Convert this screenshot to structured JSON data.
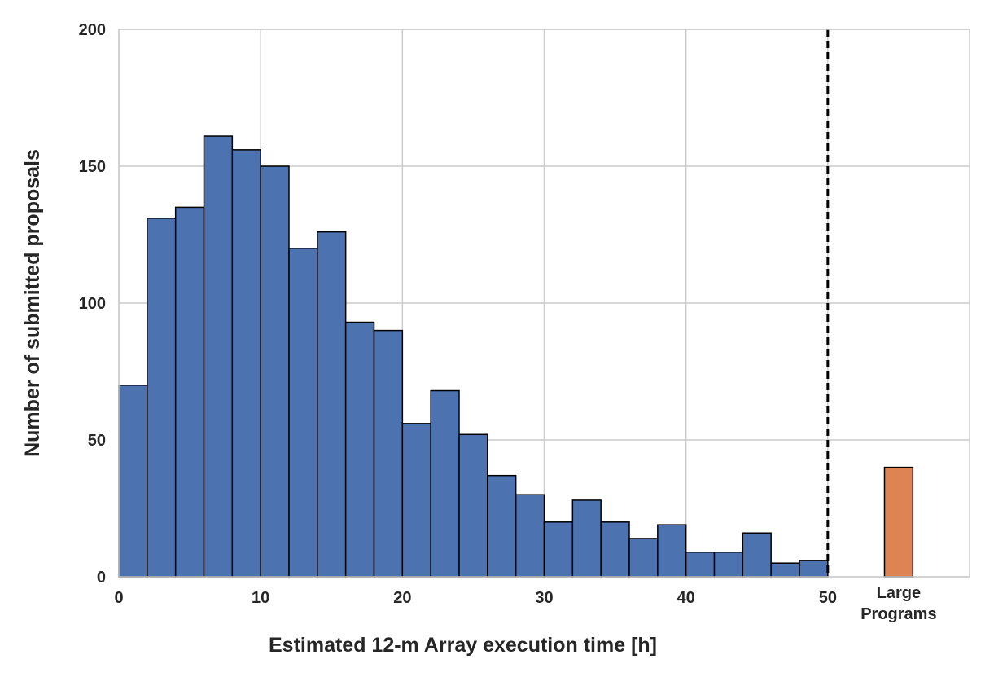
{
  "chart_data": {
    "type": "bar",
    "xlabel": "Estimated 12-m Array execution time  [h]",
    "ylabel": "Number of submitted proposals",
    "xlim": [
      0,
      60
    ],
    "ylim": [
      0,
      200
    ],
    "x_ticks": [
      0,
      10,
      20,
      30,
      40,
      50
    ],
    "y_ticks": [
      0,
      50,
      100,
      150,
      200
    ],
    "grid": true,
    "bin_width": 2,
    "histogram": {
      "bin_starts": [
        0,
        2,
        4,
        6,
        8,
        10,
        12,
        14,
        16,
        18,
        20,
        22,
        24,
        26,
        28,
        30,
        32,
        34,
        36,
        38,
        40,
        42,
        44,
        46,
        48
      ],
      "values": [
        70,
        131,
        135,
        161,
        156,
        150,
        120,
        126,
        93,
        90,
        56,
        68,
        52,
        37,
        30,
        20,
        28,
        20,
        14,
        19,
        9,
        9,
        16,
        5,
        6
      ],
      "color": "#4c72b0"
    },
    "large_programs": {
      "label": [
        "Large",
        "Programs"
      ],
      "x_start": 54,
      "x_end": 56,
      "value": 40,
      "color": "#dd8452"
    },
    "threshold_line": {
      "x": 50,
      "style": "dashed",
      "color": "#000000"
    }
  }
}
